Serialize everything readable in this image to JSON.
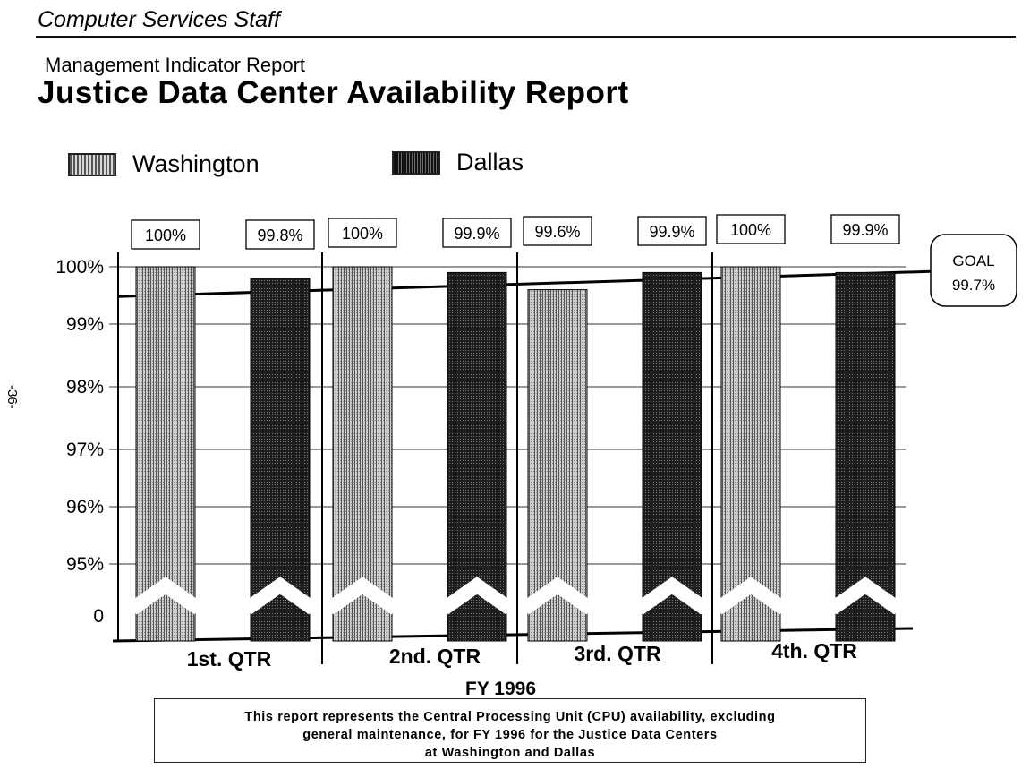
{
  "header": {
    "org": "Computer Services Staff",
    "subtitle": "Management Indicator Report",
    "title": "Justice Data Center Availability Report"
  },
  "page_number": "-36-",
  "footnote": {
    "line1": "This report represents the Central Processing Unit (CPU) availability, excluding",
    "line2": "general maintenance, for FY 1996 for the Justice Data Centers",
    "line3": "at Washington and Dallas"
  },
  "colors": {
    "washington": "#bdbdbd",
    "dallas": "#2a2a2a",
    "goal_line": "#000000"
  },
  "chart_data": {
    "type": "bar",
    "title": "Justice Data Center Availability Report",
    "xlabel": "FY 1996",
    "ylabel": "",
    "categories": [
      "1st. QTR",
      "2nd. QTR",
      "3rd. QTR",
      "4th. QTR"
    ],
    "series": [
      {
        "name": "Washington",
        "values": [
          100,
          100,
          99.6,
          100
        ],
        "labels": [
          "100%",
          "100%",
          "99.6%",
          "100%"
        ]
      },
      {
        "name": "Dallas",
        "values": [
          99.8,
          99.9,
          99.9,
          99.9
        ],
        "labels": [
          "99.8%",
          "99.9%",
          "99.9%",
          "99.9%"
        ]
      }
    ],
    "y_ticks": [
      "100%",
      "99%",
      "98%",
      "97%",
      "96%",
      "95%",
      "0"
    ],
    "y_tick_values": [
      100,
      99,
      98,
      97,
      96,
      95,
      0
    ],
    "axis_break": true,
    "goal": {
      "value": 99.7,
      "label_line1": "GOAL",
      "label_line2": "99.7%"
    },
    "legend": {
      "placement": "top-left",
      "entries": [
        "Washington",
        "Dallas"
      ]
    },
    "grid": true
  }
}
